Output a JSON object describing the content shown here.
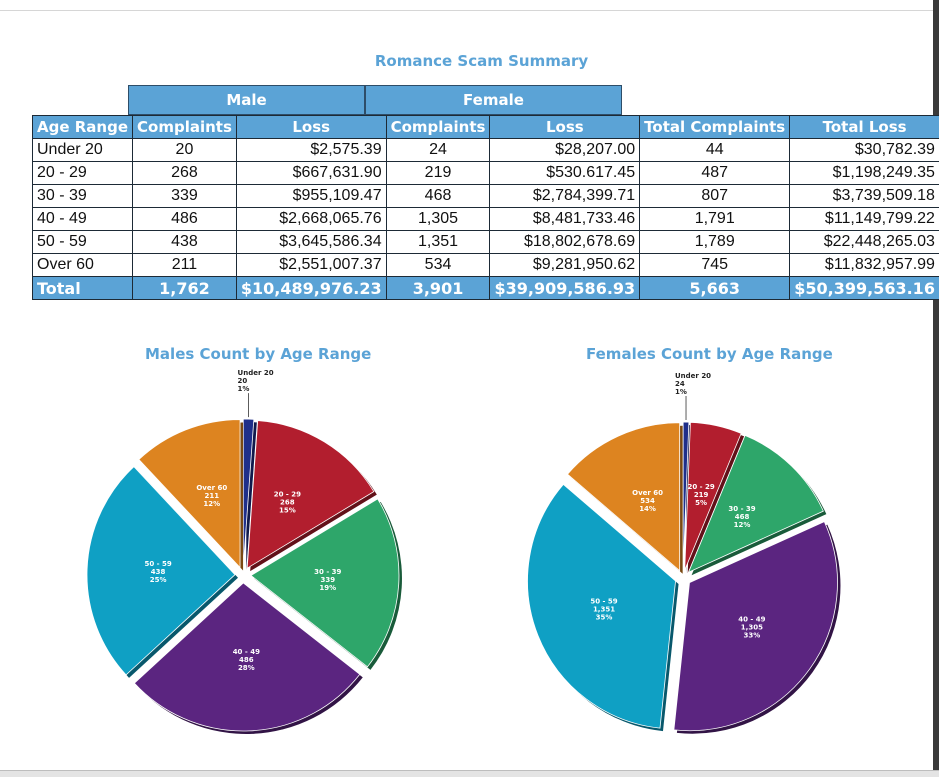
{
  "colors": {
    "header_blue": "#5ba3d6",
    "under_20": "#1f2f8a",
    "age_20_29": "#b21e2e",
    "age_30_39": "#2ea66a",
    "age_40_49": "#5b2580",
    "age_50_59": "#0fa0c4",
    "over_60": "#dd8420"
  },
  "table": {
    "title": "Romance Scam Summary",
    "groups": {
      "male": "Male",
      "female": "Female"
    },
    "headers": [
      "Age Range",
      "Complaints",
      "Loss",
      "Complaints",
      "Loss",
      "Total Complaints",
      "Total Loss"
    ],
    "rows": [
      [
        "Under 20",
        "20",
        "$2,575.39",
        "24",
        "$28,207.00",
        "44",
        "$30,782.39"
      ],
      [
        "20 - 29",
        "268",
        "$667,631.90",
        "219",
        "$530.617.45",
        "487",
        "$1,198,249.35"
      ],
      [
        "30 - 39",
        "339",
        "$955,109.47",
        "468",
        "$2,784,399.71",
        "807",
        "$3,739,509.18"
      ],
      [
        "40 - 49",
        "486",
        "$2,668,065.76",
        "1,305",
        "$8,481,733.46",
        "1,791",
        "$11,149,799.22"
      ],
      [
        "50 - 59",
        "438",
        "$3,645,586.34",
        "1,351",
        "$18,802,678.69",
        "1,789",
        "$22,448,265.03"
      ],
      [
        "Over 60",
        "211",
        "$2,551,007.37",
        "534",
        "$9,281,950.62",
        "745",
        "$11,832,957.99"
      ]
    ],
    "total": [
      "Total",
      "1,762",
      "$10,489,976.23",
      "3,901",
      "$39,909,586.93",
      "5,663",
      "$50,399,563.16"
    ]
  },
  "chart_data": [
    {
      "type": "pie",
      "title": "Males Count by Age Range",
      "categories": [
        "Under 20",
        "20 - 29",
        "30 - 39",
        "40 - 49",
        "50 - 59",
        "Over 60"
      ],
      "values": [
        20,
        268,
        339,
        486,
        438,
        211
      ],
      "value_labels": [
        "20",
        "268",
        "339",
        "486",
        "438",
        "211"
      ],
      "percent_labels": [
        "1%",
        "15%",
        "19%",
        "28%",
        "25%",
        "12%"
      ],
      "exploded": true
    },
    {
      "type": "pie",
      "title": "Females Count by Age Range",
      "categories": [
        "Under 20",
        "20 - 29",
        "30 - 39",
        "40 - 49",
        "50 - 59",
        "Over 60"
      ],
      "values": [
        24,
        219,
        468,
        1305,
        1351,
        534
      ],
      "value_labels": [
        "24",
        "219",
        "468",
        "1,305",
        "1,351",
        "534"
      ],
      "percent_labels": [
        "1%",
        "5%",
        "12%",
        "33%",
        "35%",
        "14%"
      ],
      "exploded": true
    }
  ]
}
